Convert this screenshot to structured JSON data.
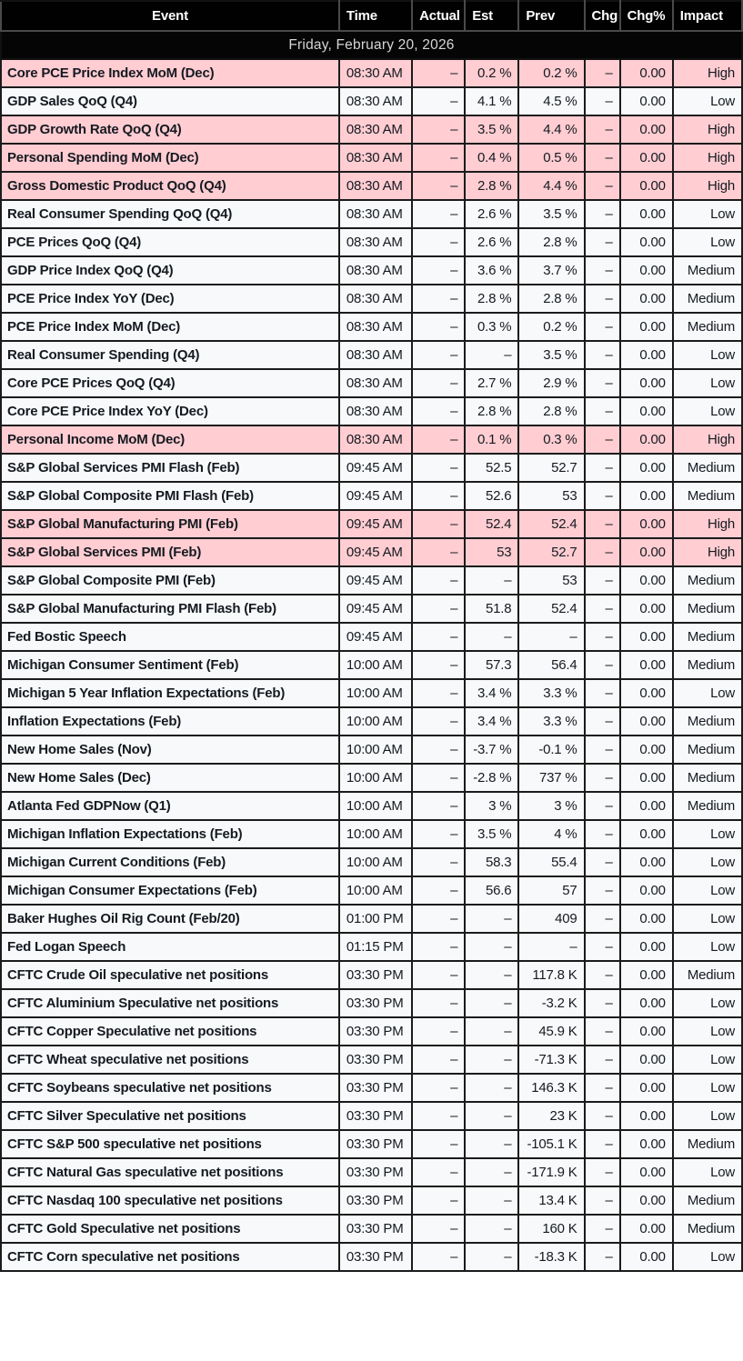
{
  "table": {
    "columns": [
      "Event",
      "Time",
      "Actual",
      "Est",
      "Prev",
      "Chg",
      "Chg%",
      "Impact"
    ],
    "date_header": "Friday, February 20, 2026",
    "colors": {
      "header_bg": "#010101",
      "header_text": "#ffffff",
      "date_row_bg": "#050505",
      "date_row_text": "#d6d6d6",
      "row_bg": "#f8f9fa",
      "high_impact_row_bg": "#ffcdd2",
      "grid_border": "#1b1b1b",
      "text": "#151a21"
    },
    "rows": [
      {
        "event": "Core PCE Price Index MoM (Dec)",
        "time": "08:30 AM",
        "actual": "–",
        "est": "0.2 %",
        "prev": "0.2 %",
        "chg": "–",
        "chg_pct": "0.00",
        "impact": "High"
      },
      {
        "event": "GDP Sales QoQ (Q4)",
        "time": "08:30 AM",
        "actual": "–",
        "est": "4.1 %",
        "prev": "4.5 %",
        "chg": "–",
        "chg_pct": "0.00",
        "impact": "Low"
      },
      {
        "event": "GDP Growth Rate QoQ (Q4)",
        "time": "08:30 AM",
        "actual": "–",
        "est": "3.5 %",
        "prev": "4.4 %",
        "chg": "–",
        "chg_pct": "0.00",
        "impact": "High"
      },
      {
        "event": "Personal Spending MoM (Dec)",
        "time": "08:30 AM",
        "actual": "–",
        "est": "0.4 %",
        "prev": "0.5 %",
        "chg": "–",
        "chg_pct": "0.00",
        "impact": "High"
      },
      {
        "event": "Gross Domestic Product QoQ (Q4)",
        "time": "08:30 AM",
        "actual": "–",
        "est": "2.8 %",
        "prev": "4.4 %",
        "chg": "–",
        "chg_pct": "0.00",
        "impact": "High"
      },
      {
        "event": "Real Consumer Spending QoQ (Q4)",
        "time": "08:30 AM",
        "actual": "–",
        "est": "2.6 %",
        "prev": "3.5 %",
        "chg": "–",
        "chg_pct": "0.00",
        "impact": "Low"
      },
      {
        "event": "PCE Prices QoQ (Q4)",
        "time": "08:30 AM",
        "actual": "–",
        "est": "2.6 %",
        "prev": "2.8 %",
        "chg": "–",
        "chg_pct": "0.00",
        "impact": "Low"
      },
      {
        "event": "GDP Price Index QoQ (Q4)",
        "time": "08:30 AM",
        "actual": "–",
        "est": "3.6 %",
        "prev": "3.7 %",
        "chg": "–",
        "chg_pct": "0.00",
        "impact": "Medium"
      },
      {
        "event": "PCE Price Index YoY (Dec)",
        "time": "08:30 AM",
        "actual": "–",
        "est": "2.8 %",
        "prev": "2.8 %",
        "chg": "–",
        "chg_pct": "0.00",
        "impact": "Medium"
      },
      {
        "event": "PCE Price Index MoM (Dec)",
        "time": "08:30 AM",
        "actual": "–",
        "est": "0.3 %",
        "prev": "0.2 %",
        "chg": "–",
        "chg_pct": "0.00",
        "impact": "Medium"
      },
      {
        "event": "Real Consumer Spending (Q4)",
        "time": "08:30 AM",
        "actual": "–",
        "est": "–",
        "prev": "3.5 %",
        "chg": "–",
        "chg_pct": "0.00",
        "impact": "Low"
      },
      {
        "event": "Core PCE Prices QoQ (Q4)",
        "time": "08:30 AM",
        "actual": "–",
        "est": "2.7 %",
        "prev": "2.9 %",
        "chg": "–",
        "chg_pct": "0.00",
        "impact": "Low"
      },
      {
        "event": "Core PCE Price Index YoY (Dec)",
        "time": "08:30 AM",
        "actual": "–",
        "est": "2.8 %",
        "prev": "2.8 %",
        "chg": "–",
        "chg_pct": "0.00",
        "impact": "Low"
      },
      {
        "event": "Personal Income MoM (Dec)",
        "time": "08:30 AM",
        "actual": "–",
        "est": "0.1 %",
        "prev": "0.3 %",
        "chg": "–",
        "chg_pct": "0.00",
        "impact": "High"
      },
      {
        "event": "S&P Global Services PMI Flash (Feb)",
        "time": "09:45 AM",
        "actual": "–",
        "est": "52.5",
        "prev": "52.7",
        "chg": "–",
        "chg_pct": "0.00",
        "impact": "Medium"
      },
      {
        "event": "S&P Global Composite PMI Flash (Feb)",
        "time": "09:45 AM",
        "actual": "–",
        "est": "52.6",
        "prev": "53",
        "chg": "–",
        "chg_pct": "0.00",
        "impact": "Medium"
      },
      {
        "event": "S&P Global Manufacturing PMI (Feb)",
        "time": "09:45 AM",
        "actual": "–",
        "est": "52.4",
        "prev": "52.4",
        "chg": "–",
        "chg_pct": "0.00",
        "impact": "High"
      },
      {
        "event": "S&P Global Services PMI (Feb)",
        "time": "09:45 AM",
        "actual": "–",
        "est": "53",
        "prev": "52.7",
        "chg": "–",
        "chg_pct": "0.00",
        "impact": "High"
      },
      {
        "event": "S&P Global Composite PMI (Feb)",
        "time": "09:45 AM",
        "actual": "–",
        "est": "–",
        "prev": "53",
        "chg": "–",
        "chg_pct": "0.00",
        "impact": "Medium"
      },
      {
        "event": "S&P Global Manufacturing PMI Flash (Feb)",
        "time": "09:45 AM",
        "actual": "–",
        "est": "51.8",
        "prev": "52.4",
        "chg": "–",
        "chg_pct": "0.00",
        "impact": "Medium"
      },
      {
        "event": "Fed Bostic Speech",
        "time": "09:45 AM",
        "actual": "–",
        "est": "–",
        "prev": "–",
        "chg": "–",
        "chg_pct": "0.00",
        "impact": "Medium"
      },
      {
        "event": "Michigan Consumer Sentiment (Feb)",
        "time": "10:00 AM",
        "actual": "–",
        "est": "57.3",
        "prev": "56.4",
        "chg": "–",
        "chg_pct": "0.00",
        "impact": "Medium"
      },
      {
        "event": "Michigan 5 Year Inflation Expectations (Feb)",
        "time": "10:00 AM",
        "actual": "–",
        "est": "3.4 %",
        "prev": "3.3 %",
        "chg": "–",
        "chg_pct": "0.00",
        "impact": "Low"
      },
      {
        "event": "Inflation Expectations (Feb)",
        "time": "10:00 AM",
        "actual": "–",
        "est": "3.4 %",
        "prev": "3.3 %",
        "chg": "–",
        "chg_pct": "0.00",
        "impact": "Medium"
      },
      {
        "event": "New Home Sales (Nov)",
        "time": "10:00 AM",
        "actual": "–",
        "est": "-3.7 %",
        "prev": "-0.1 %",
        "chg": "–",
        "chg_pct": "0.00",
        "impact": "Medium"
      },
      {
        "event": "New Home Sales (Dec)",
        "time": "10:00 AM",
        "actual": "–",
        "est": "-2.8 %",
        "prev": "737 %",
        "chg": "–",
        "chg_pct": "0.00",
        "impact": "Medium"
      },
      {
        "event": "Atlanta Fed GDPNow (Q1)",
        "time": "10:00 AM",
        "actual": "–",
        "est": "3 %",
        "prev": "3 %",
        "chg": "–",
        "chg_pct": "0.00",
        "impact": "Medium"
      },
      {
        "event": "Michigan Inflation Expectations (Feb)",
        "time": "10:00 AM",
        "actual": "–",
        "est": "3.5 %",
        "prev": "4 %",
        "chg": "–",
        "chg_pct": "0.00",
        "impact": "Low"
      },
      {
        "event": "Michigan Current Conditions (Feb)",
        "time": "10:00 AM",
        "actual": "–",
        "est": "58.3",
        "prev": "55.4",
        "chg": "–",
        "chg_pct": "0.00",
        "impact": "Low"
      },
      {
        "event": "Michigan Consumer Expectations (Feb)",
        "time": "10:00 AM",
        "actual": "–",
        "est": "56.6",
        "prev": "57",
        "chg": "–",
        "chg_pct": "0.00",
        "impact": "Low"
      },
      {
        "event": "Baker Hughes Oil Rig Count (Feb/20)",
        "time": "01:00 PM",
        "actual": "–",
        "est": "–",
        "prev": "409",
        "chg": "–",
        "chg_pct": "0.00",
        "impact": "Low"
      },
      {
        "event": "Fed Logan Speech",
        "time": "01:15 PM",
        "actual": "–",
        "est": "–",
        "prev": "–",
        "chg": "–",
        "chg_pct": "0.00",
        "impact": "Low"
      },
      {
        "event": "CFTC Crude Oil speculative net positions",
        "time": "03:30 PM",
        "actual": "–",
        "est": "–",
        "prev": "117.8 K",
        "chg": "–",
        "chg_pct": "0.00",
        "impact": "Medium"
      },
      {
        "event": "CFTC Aluminium Speculative net positions",
        "time": "03:30 PM",
        "actual": "–",
        "est": "–",
        "prev": "-3.2 K",
        "chg": "–",
        "chg_pct": "0.00",
        "impact": "Low"
      },
      {
        "event": "CFTC Copper Speculative net positions",
        "time": "03:30 PM",
        "actual": "–",
        "est": "–",
        "prev": "45.9 K",
        "chg": "–",
        "chg_pct": "0.00",
        "impact": "Low"
      },
      {
        "event": "CFTC Wheat speculative net positions",
        "time": "03:30 PM",
        "actual": "–",
        "est": "–",
        "prev": "-71.3 K",
        "chg": "–",
        "chg_pct": "0.00",
        "impact": "Low"
      },
      {
        "event": "CFTC Soybeans speculative net positions",
        "time": "03:30 PM",
        "actual": "–",
        "est": "–",
        "prev": "146.3 K",
        "chg": "–",
        "chg_pct": "0.00",
        "impact": "Low"
      },
      {
        "event": "CFTC Silver Speculative net positions",
        "time": "03:30 PM",
        "actual": "–",
        "est": "–",
        "prev": "23 K",
        "chg": "–",
        "chg_pct": "0.00",
        "impact": "Low"
      },
      {
        "event": "CFTC S&P 500 speculative net positions",
        "time": "03:30 PM",
        "actual": "–",
        "est": "–",
        "prev": "-105.1 K",
        "chg": "–",
        "chg_pct": "0.00",
        "impact": "Medium"
      },
      {
        "event": "CFTC Natural Gas speculative net positions",
        "time": "03:30 PM",
        "actual": "–",
        "est": "–",
        "prev": "-171.9 K",
        "chg": "–",
        "chg_pct": "0.00",
        "impact": "Low"
      },
      {
        "event": "CFTC Nasdaq 100 speculative net positions",
        "time": "03:30 PM",
        "actual": "–",
        "est": "–",
        "prev": "13.4 K",
        "chg": "–",
        "chg_pct": "0.00",
        "impact": "Medium"
      },
      {
        "event": "CFTC Gold Speculative net positions",
        "time": "03:30 PM",
        "actual": "–",
        "est": "–",
        "prev": "160 K",
        "chg": "–",
        "chg_pct": "0.00",
        "impact": "Medium"
      },
      {
        "event": "CFTC Corn speculative net positions",
        "time": "03:30 PM",
        "actual": "–",
        "est": "–",
        "prev": "-18.3 K",
        "chg": "–",
        "chg_pct": "0.00",
        "impact": "Low"
      }
    ]
  }
}
